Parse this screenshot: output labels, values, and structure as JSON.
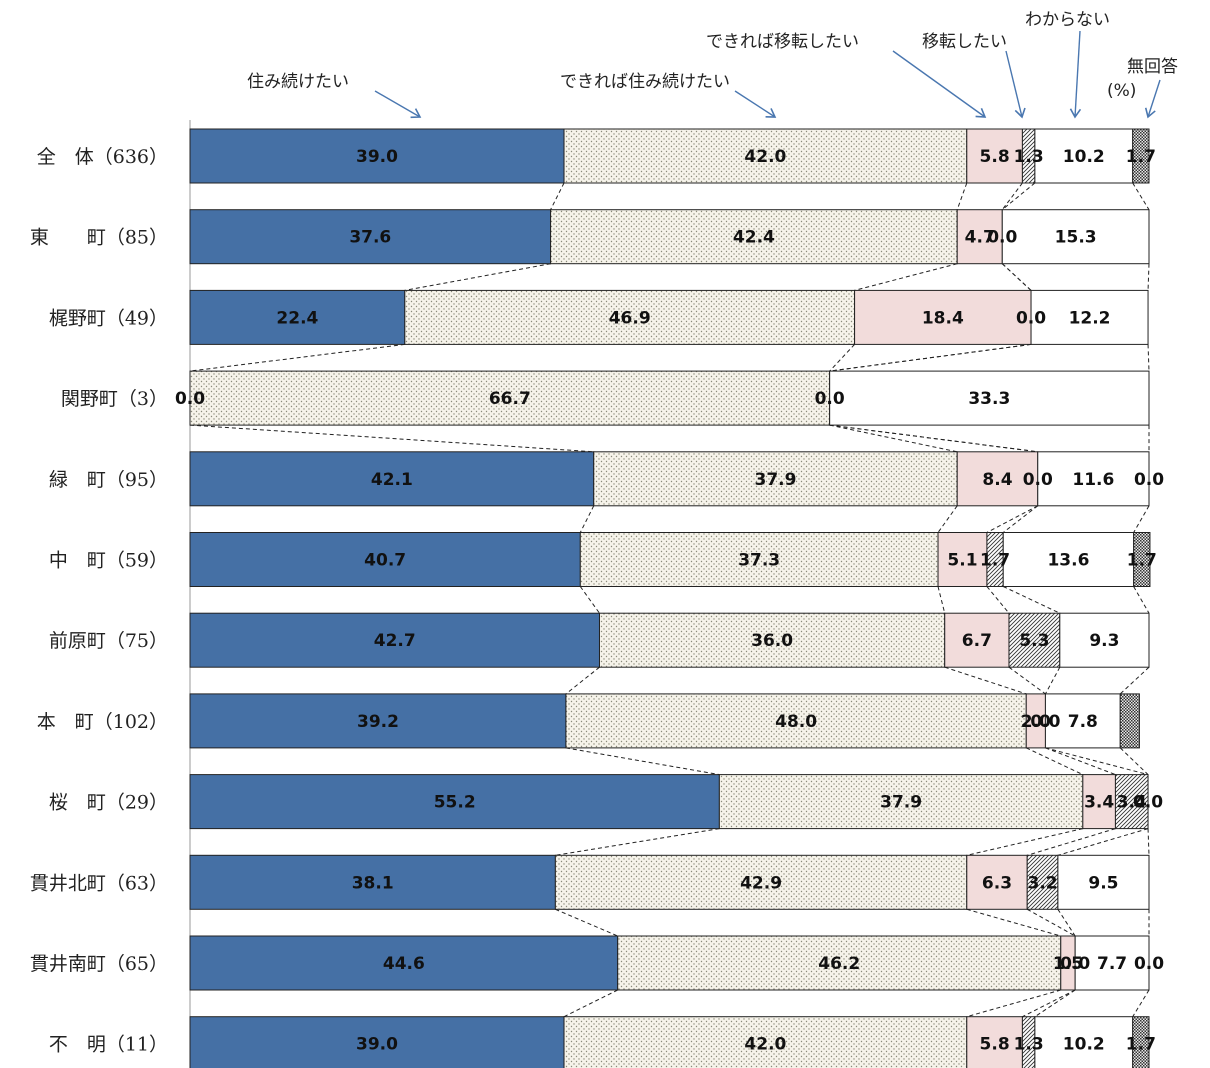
{
  "chart_data": {
    "type": "bar",
    "orientation": "horizontal",
    "stacked": "100%",
    "unit": "(%)",
    "legend_placement": "top (callout labels with arrows)",
    "series": [
      {
        "name": "住み続けたい",
        "color": "#4570a5",
        "pattern": "solid",
        "values": [
          39.0,
          37.6,
          22.4,
          0.0,
          42.1,
          40.7,
          42.7,
          39.2,
          55.2,
          38.1,
          44.6,
          39.0
        ]
      },
      {
        "name": "できれば住み続けたい",
        "color": "#f4f1e8",
        "pattern": "dots",
        "values": [
          42.0,
          42.4,
          46.9,
          66.7,
          37.9,
          37.3,
          36.0,
          48.0,
          37.9,
          42.9,
          46.2,
          42.0
        ]
      },
      {
        "name": "できれば移転したい",
        "color": "#f2dcdb",
        "pattern": "solid",
        "values": [
          5.8,
          4.7,
          18.4,
          0.0,
          8.4,
          5.1,
          6.7,
          2.0,
          3.4,
          6.3,
          1.5,
          5.8
        ]
      },
      {
        "name": "移転したい",
        "color": "#ffffff",
        "pattern": "hatch",
        "values": [
          1.3,
          0.0,
          0.0,
          0.0,
          0.0,
          1.7,
          5.3,
          0.0,
          3.4,
          3.2,
          0.0,
          1.3
        ]
      },
      {
        "name": "わからない",
        "color": "#ffffff",
        "pattern": "solid",
        "values": [
          10.2,
          15.3,
          12.2,
          33.3,
          11.6,
          13.6,
          9.3,
          7.8,
          0.0,
          9.5,
          7.7,
          10.2
        ]
      },
      {
        "name": "無回答",
        "color": "#555555",
        "pattern": "checker",
        "values": [
          1.7,
          0.0,
          0.0,
          0.0,
          0.0,
          1.7,
          0.0,
          2.0,
          0.0,
          0.0,
          0.0,
          1.7
        ]
      }
    ],
    "categories": [
      "全　体（636）",
      "東　　町（85）",
      "梶野町（49）",
      "関野町（3）",
      "緑　町（95）",
      "中　町（59）",
      "前原町（75）",
      "本　町（102）",
      "桜　町（29）",
      "貫井北町（63）",
      "貫井南町（65）",
      "不　明（11）"
    ],
    "labels": [
      [
        "39.0",
        "42.0",
        "5.8",
        "1.3",
        "10.2",
        "1.7"
      ],
      [
        "37.6",
        "42.4",
        "4.7",
        "0.0",
        "15.3",
        ""
      ],
      [
        "22.4",
        "46.9",
        "18.4",
        "0.0",
        "12.2",
        ""
      ],
      [
        "0.0",
        "66.7",
        "0.0",
        "",
        "33.3",
        ""
      ],
      [
        "42.1",
        "37.9",
        "8.4",
        "0.0",
        "11.6",
        "0.0"
      ],
      [
        "40.7",
        "37.3",
        "5.1",
        "1.7",
        "13.6",
        "1.7"
      ],
      [
        "42.7",
        "36.0",
        "6.7",
        "5.3",
        "9.3",
        ""
      ],
      [
        "39.2",
        "48.0",
        "2.0",
        "0.0",
        "7.8",
        ""
      ],
      [
        "55.2",
        "37.9",
        "3.4",
        "3.4",
        "",
        "0.0"
      ],
      [
        "38.1",
        "42.9",
        "6.3",
        "3.2",
        "9.5",
        ""
      ],
      [
        "44.6",
        "46.2",
        "1.5",
        "0.0",
        "7.7",
        "0.0"
      ],
      [
        "39.0",
        "42.0",
        "5.8",
        "1.3",
        "10.2",
        "1.7"
      ]
    ]
  }
}
